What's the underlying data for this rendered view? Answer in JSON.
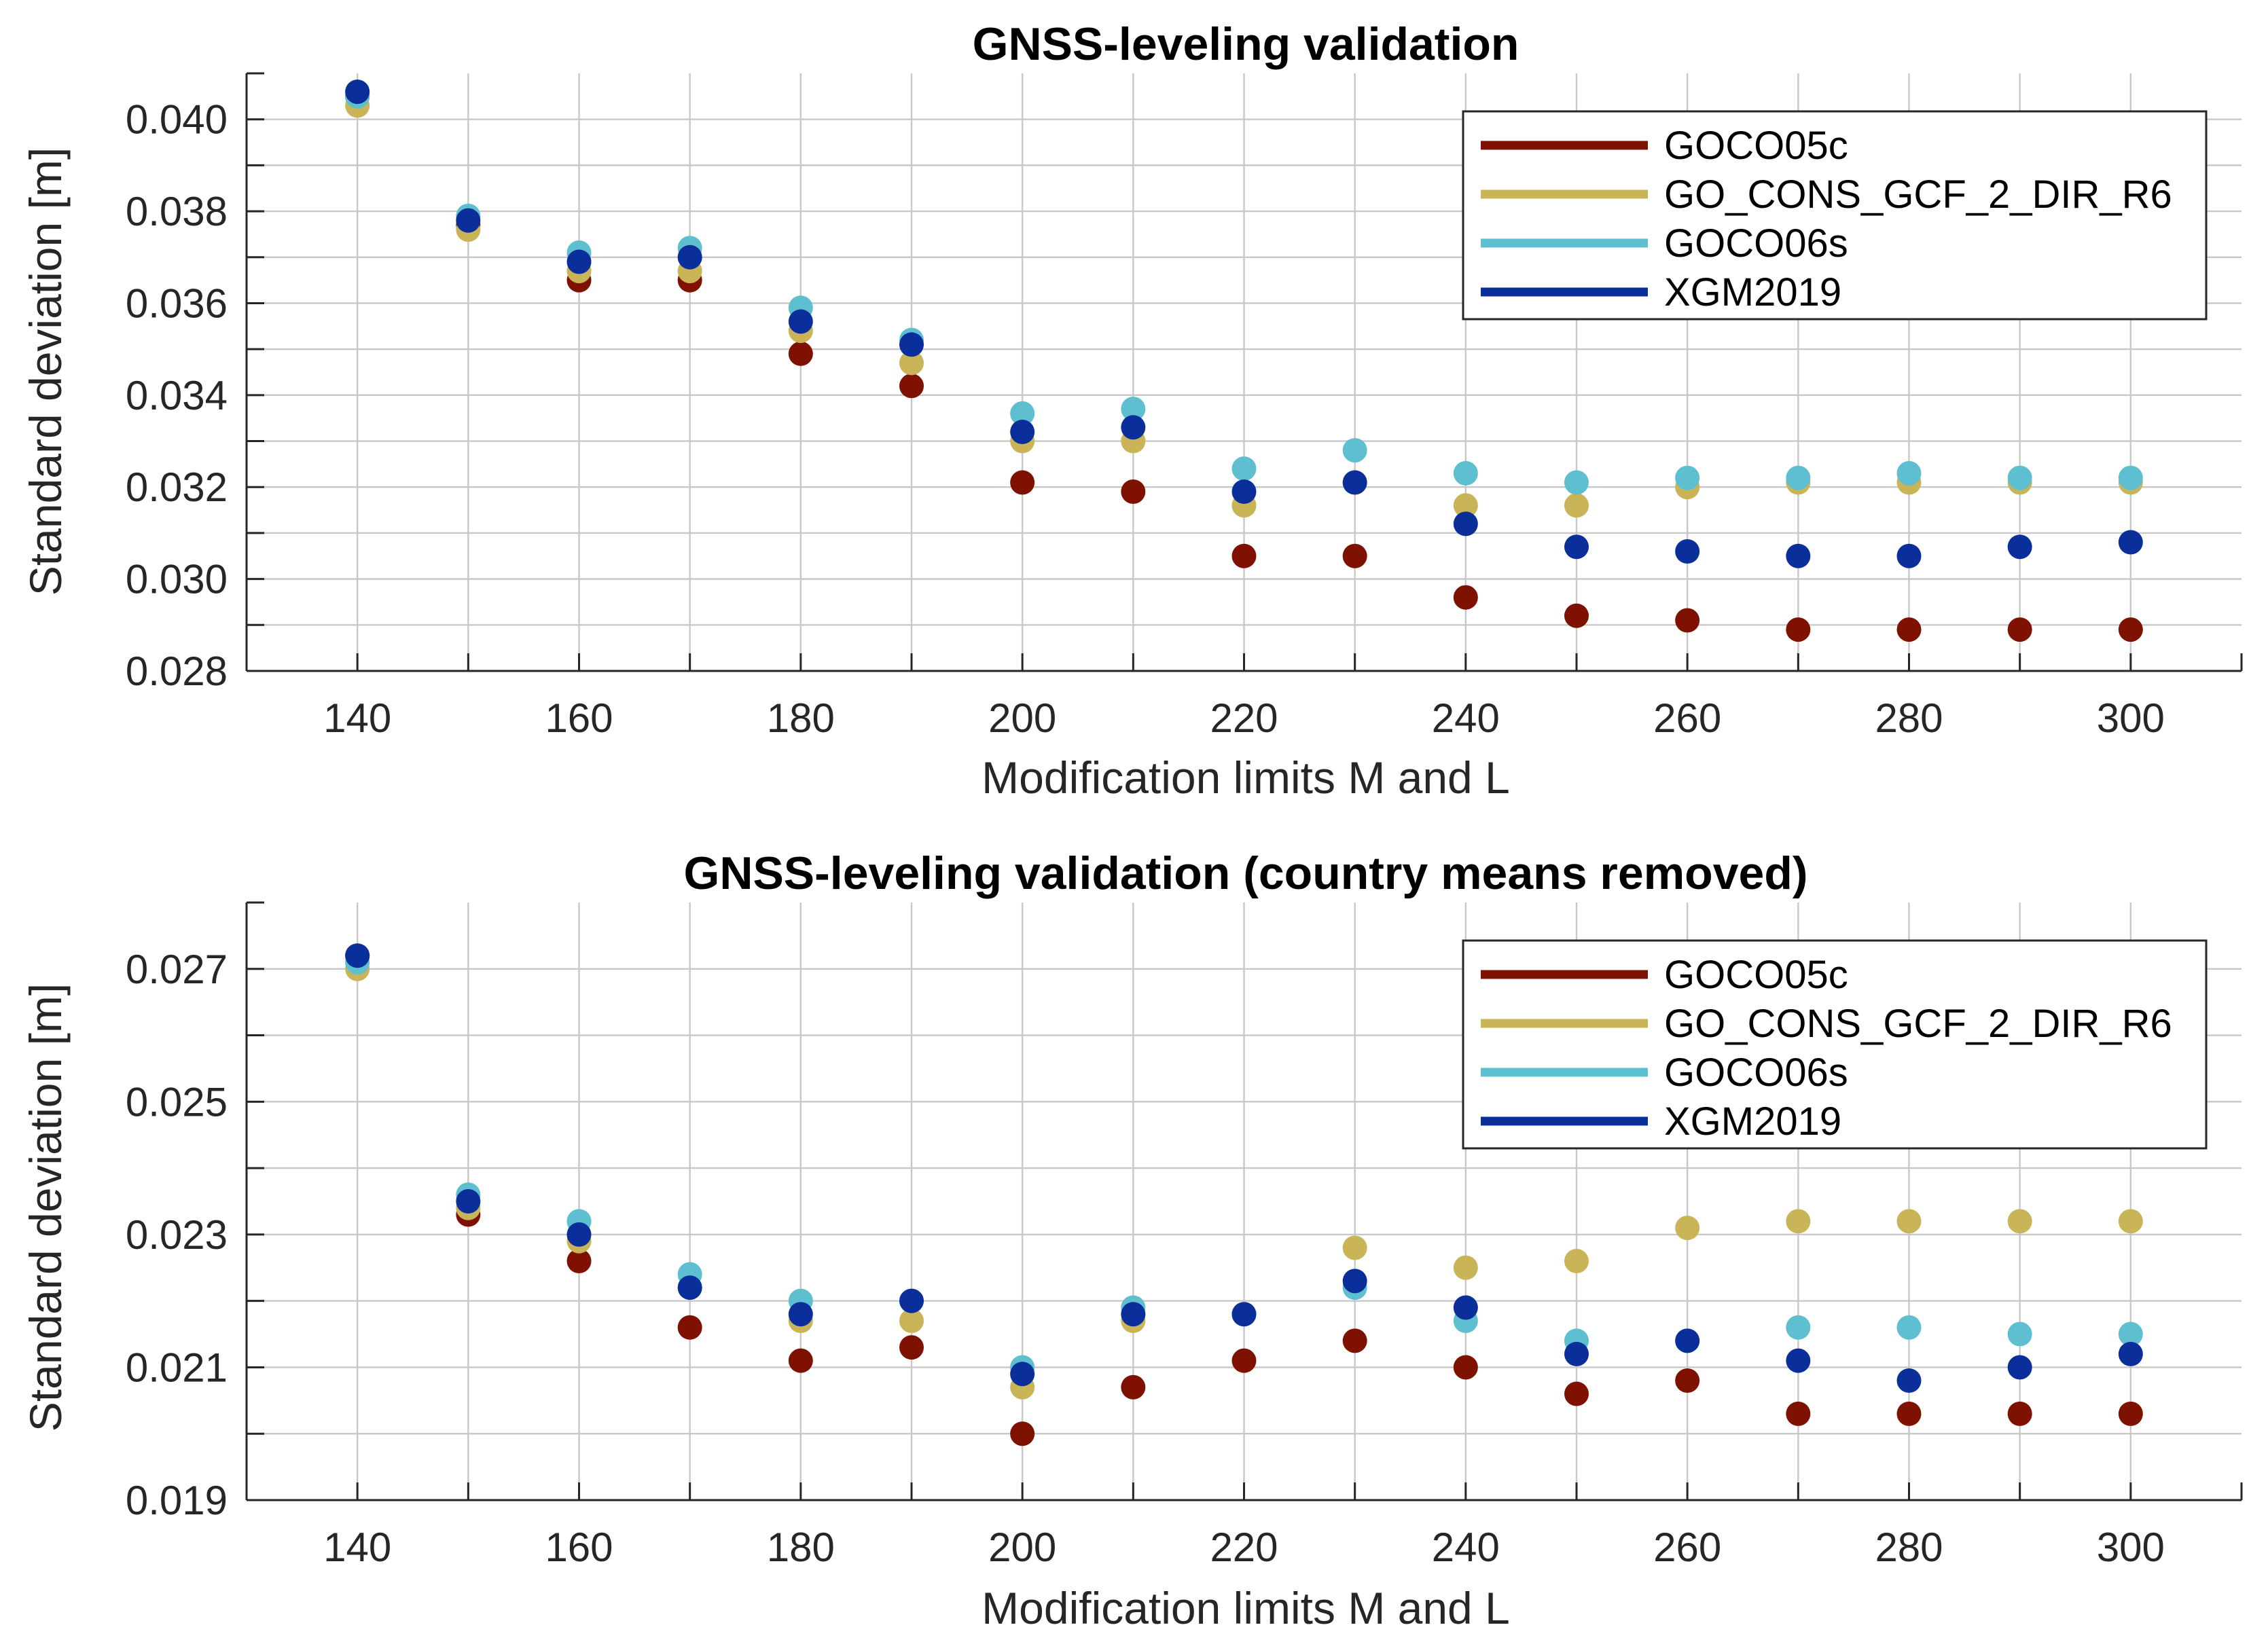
{
  "chart_data": [
    {
      "type": "scatter",
      "title": "GNSS-leveling validation",
      "xlabel": "Modification limits M and L",
      "ylabel": "Standard deviation [m]",
      "xlim": [
        130,
        310
      ],
      "ylim": [
        0.028,
        0.041
      ],
      "xticks": [
        140,
        160,
        180,
        200,
        220,
        240,
        260,
        280,
        300
      ],
      "xtick_labels": [
        "140",
        "160",
        "180",
        "200",
        "220",
        "240",
        "260",
        "280",
        "300"
      ],
      "yticks": [
        0.028,
        0.03,
        0.032,
        0.034,
        0.036,
        0.038,
        0.04
      ],
      "ytick_labels": [
        "0.028",
        "0.030",
        "0.032",
        "0.034",
        "0.036",
        "0.038",
        "0.040"
      ],
      "minor_xticks": [
        130,
        150,
        170,
        190,
        210,
        230,
        250,
        270,
        290,
        310
      ],
      "minor_yticks": [
        0.029,
        0.031,
        0.033,
        0.035,
        0.037,
        0.039,
        0.041
      ],
      "grid": true,
      "legend_position": "top-right",
      "x": [
        140,
        150,
        160,
        170,
        180,
        190,
        200,
        210,
        220,
        230,
        240,
        250,
        260,
        270,
        280,
        290,
        300
      ],
      "series": [
        {
          "name": "GOCO05c",
          "color": "#7f1100",
          "values": [
            0.0405,
            0.0377,
            0.0365,
            0.0365,
            0.0349,
            0.0342,
            0.0321,
            0.0319,
            0.0305,
            0.0305,
            0.0296,
            0.0292,
            0.0291,
            0.0289,
            0.0289,
            0.0289,
            0.0289
          ]
        },
        {
          "name": "GO_CONS_GCF_2_DIR_R6",
          "color": "#c9b458",
          "values": [
            0.0403,
            0.0376,
            0.0367,
            0.0367,
            0.0354,
            0.0347,
            0.033,
            0.033,
            0.0316,
            0.0321,
            0.0316,
            0.0316,
            0.032,
            0.0321,
            0.0321,
            0.0321,
            0.0321
          ]
        },
        {
          "name": "GOCO06s",
          "color": "#5ebfd0",
          "values": [
            0.0405,
            0.0379,
            0.0371,
            0.0372,
            0.0359,
            0.0352,
            0.0336,
            0.0337,
            0.0324,
            0.0328,
            0.0323,
            0.0321,
            0.0322,
            0.0322,
            0.0323,
            0.0322,
            0.0322
          ]
        },
        {
          "name": "XGM2019",
          "color": "#0b2f9a",
          "values": [
            0.0406,
            0.0378,
            0.0369,
            0.037,
            0.0356,
            0.0351,
            0.0332,
            0.0333,
            0.0319,
            0.0321,
            0.0312,
            0.0307,
            0.0306,
            0.0305,
            0.0305,
            0.0307,
            0.0308
          ]
        }
      ]
    },
    {
      "type": "scatter",
      "title": "GNSS-leveling validation (country means removed)",
      "xlabel": "Modification limits M and L",
      "ylabel": "Standard deviation [m]",
      "xlim": [
        130,
        310
      ],
      "ylim": [
        0.019,
        0.028
      ],
      "xticks": [
        140,
        160,
        180,
        200,
        220,
        240,
        260,
        280,
        300
      ],
      "xtick_labels": [
        "140",
        "160",
        "180",
        "200",
        "220",
        "240",
        "260",
        "280",
        "300"
      ],
      "yticks": [
        0.019,
        0.021,
        0.023,
        0.025,
        0.027
      ],
      "ytick_labels": [
        "0.019",
        "0.021",
        "0.023",
        "0.025",
        "0.027"
      ],
      "minor_xticks": [
        130,
        150,
        170,
        190,
        210,
        230,
        250,
        270,
        290,
        310
      ],
      "minor_yticks": [
        0.02,
        0.022,
        0.024,
        0.026,
        0.028
      ],
      "grid": true,
      "legend_position": "top-right",
      "x": [
        140,
        150,
        160,
        170,
        180,
        190,
        200,
        210,
        220,
        230,
        240,
        250,
        260,
        270,
        280,
        290,
        300
      ],
      "series": [
        {
          "name": "GOCO05c",
          "color": "#7f1100",
          "values": [
            0.0272,
            0.0233,
            0.0226,
            0.0216,
            0.0211,
            0.0213,
            0.02,
            0.0207,
            0.0211,
            0.0214,
            0.021,
            0.0206,
            0.0208,
            0.0203,
            0.0203,
            0.0203,
            0.0203
          ]
        },
        {
          "name": "GO_CONS_GCF_2_DIR_R6",
          "color": "#c9b458",
          "values": [
            0.027,
            0.0234,
            0.0229,
            0.0222,
            0.0217,
            0.0217,
            0.0207,
            0.0217,
            0.0218,
            0.0228,
            0.0225,
            0.0226,
            0.0231,
            0.0232,
            0.0232,
            0.0232,
            0.0232
          ]
        },
        {
          "name": "GOCO06s",
          "color": "#5ebfd0",
          "values": [
            0.0271,
            0.0236,
            0.0232,
            0.0224,
            0.022,
            0.022,
            0.021,
            0.0219,
            0.0218,
            0.0222,
            0.0217,
            0.0214,
            0.0214,
            0.0216,
            0.0216,
            0.0215,
            0.0215
          ]
        },
        {
          "name": "XGM2019",
          "color": "#0b2f9a",
          "values": [
            0.0272,
            0.0235,
            0.023,
            0.0222,
            0.0218,
            0.022,
            0.0209,
            0.0218,
            0.0218,
            0.0223,
            0.0219,
            0.0212,
            0.0214,
            0.0211,
            0.0208,
            0.021,
            0.0212
          ]
        }
      ]
    }
  ]
}
